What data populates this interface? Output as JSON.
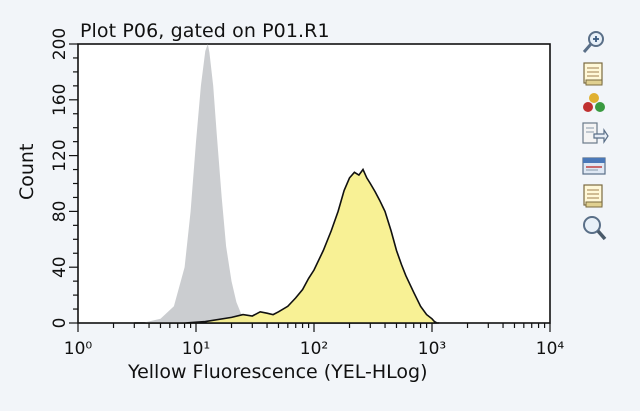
{
  "plot": {
    "title": "Plot P06, gated on P01.R1"
  },
  "toolbar": {
    "icons": [
      "zoom-in-icon",
      "copy-icon",
      "color-palette-icon",
      "export-icon",
      "print-icon",
      "properties-icon",
      "zoom-out-icon"
    ]
  },
  "colors": {
    "background": "#f2f5f9",
    "plot_area": "#ffffff",
    "control_fill": "#c8cacd",
    "sample_fill": "#f7f08a",
    "sample_outline": "#111111"
  },
  "chart_data": {
    "type": "area",
    "xscale": "log",
    "xlim": [
      1,
      10000
    ],
    "ylim": [
      0,
      200
    ],
    "xlabel": "Yellow Fluorescence (YEL-HLog)",
    "ylabel": "Count",
    "x_tick_labels": [
      "10⁰",
      "10¹",
      "10²",
      "10³",
      "10⁴"
    ],
    "x_ticks": [
      1,
      10,
      100,
      1000,
      10000
    ],
    "y_ticks": [
      0,
      40,
      80,
      120,
      160,
      200
    ],
    "y_tick_labels": [
      "0",
      "40",
      "80",
      "120",
      "160",
      "200"
    ],
    "grid": false,
    "series": [
      {
        "x": [
          3.5,
          5,
          6.5,
          8,
          9,
          10,
          11,
          12,
          12.6,
          13,
          14,
          15,
          16.5,
          18,
          20,
          22,
          24,
          27,
          30,
          35,
          40
        ],
        "y": [
          0,
          3,
          12,
          40,
          80,
          130,
          170,
          195,
          200,
          194,
          170,
          135,
          90,
          55,
          30,
          15,
          7,
          3,
          1,
          0,
          0
        ]
      },
      {
        "x": [
          3,
          8,
          12,
          20,
          25,
          30,
          35,
          40,
          45,
          50,
          60,
          70,
          80,
          90,
          100,
          120,
          140,
          160,
          180,
          200,
          220,
          240,
          260,
          280,
          300,
          330,
          360,
          400,
          450,
          500,
          550,
          600,
          700,
          800,
          900,
          1000,
          1050,
          1100,
          1150
        ],
        "y": [
          0,
          0,
          1,
          4,
          6,
          5,
          8,
          7,
          6,
          8,
          12,
          18,
          24,
          32,
          38,
          52,
          66,
          80,
          95,
          104,
          108,
          106,
          110,
          104,
          100,
          94,
          88,
          80,
          66,
          52,
          42,
          34,
          22,
          12,
          6,
          3,
          1,
          0,
          0
        ]
      }
    ]
  }
}
